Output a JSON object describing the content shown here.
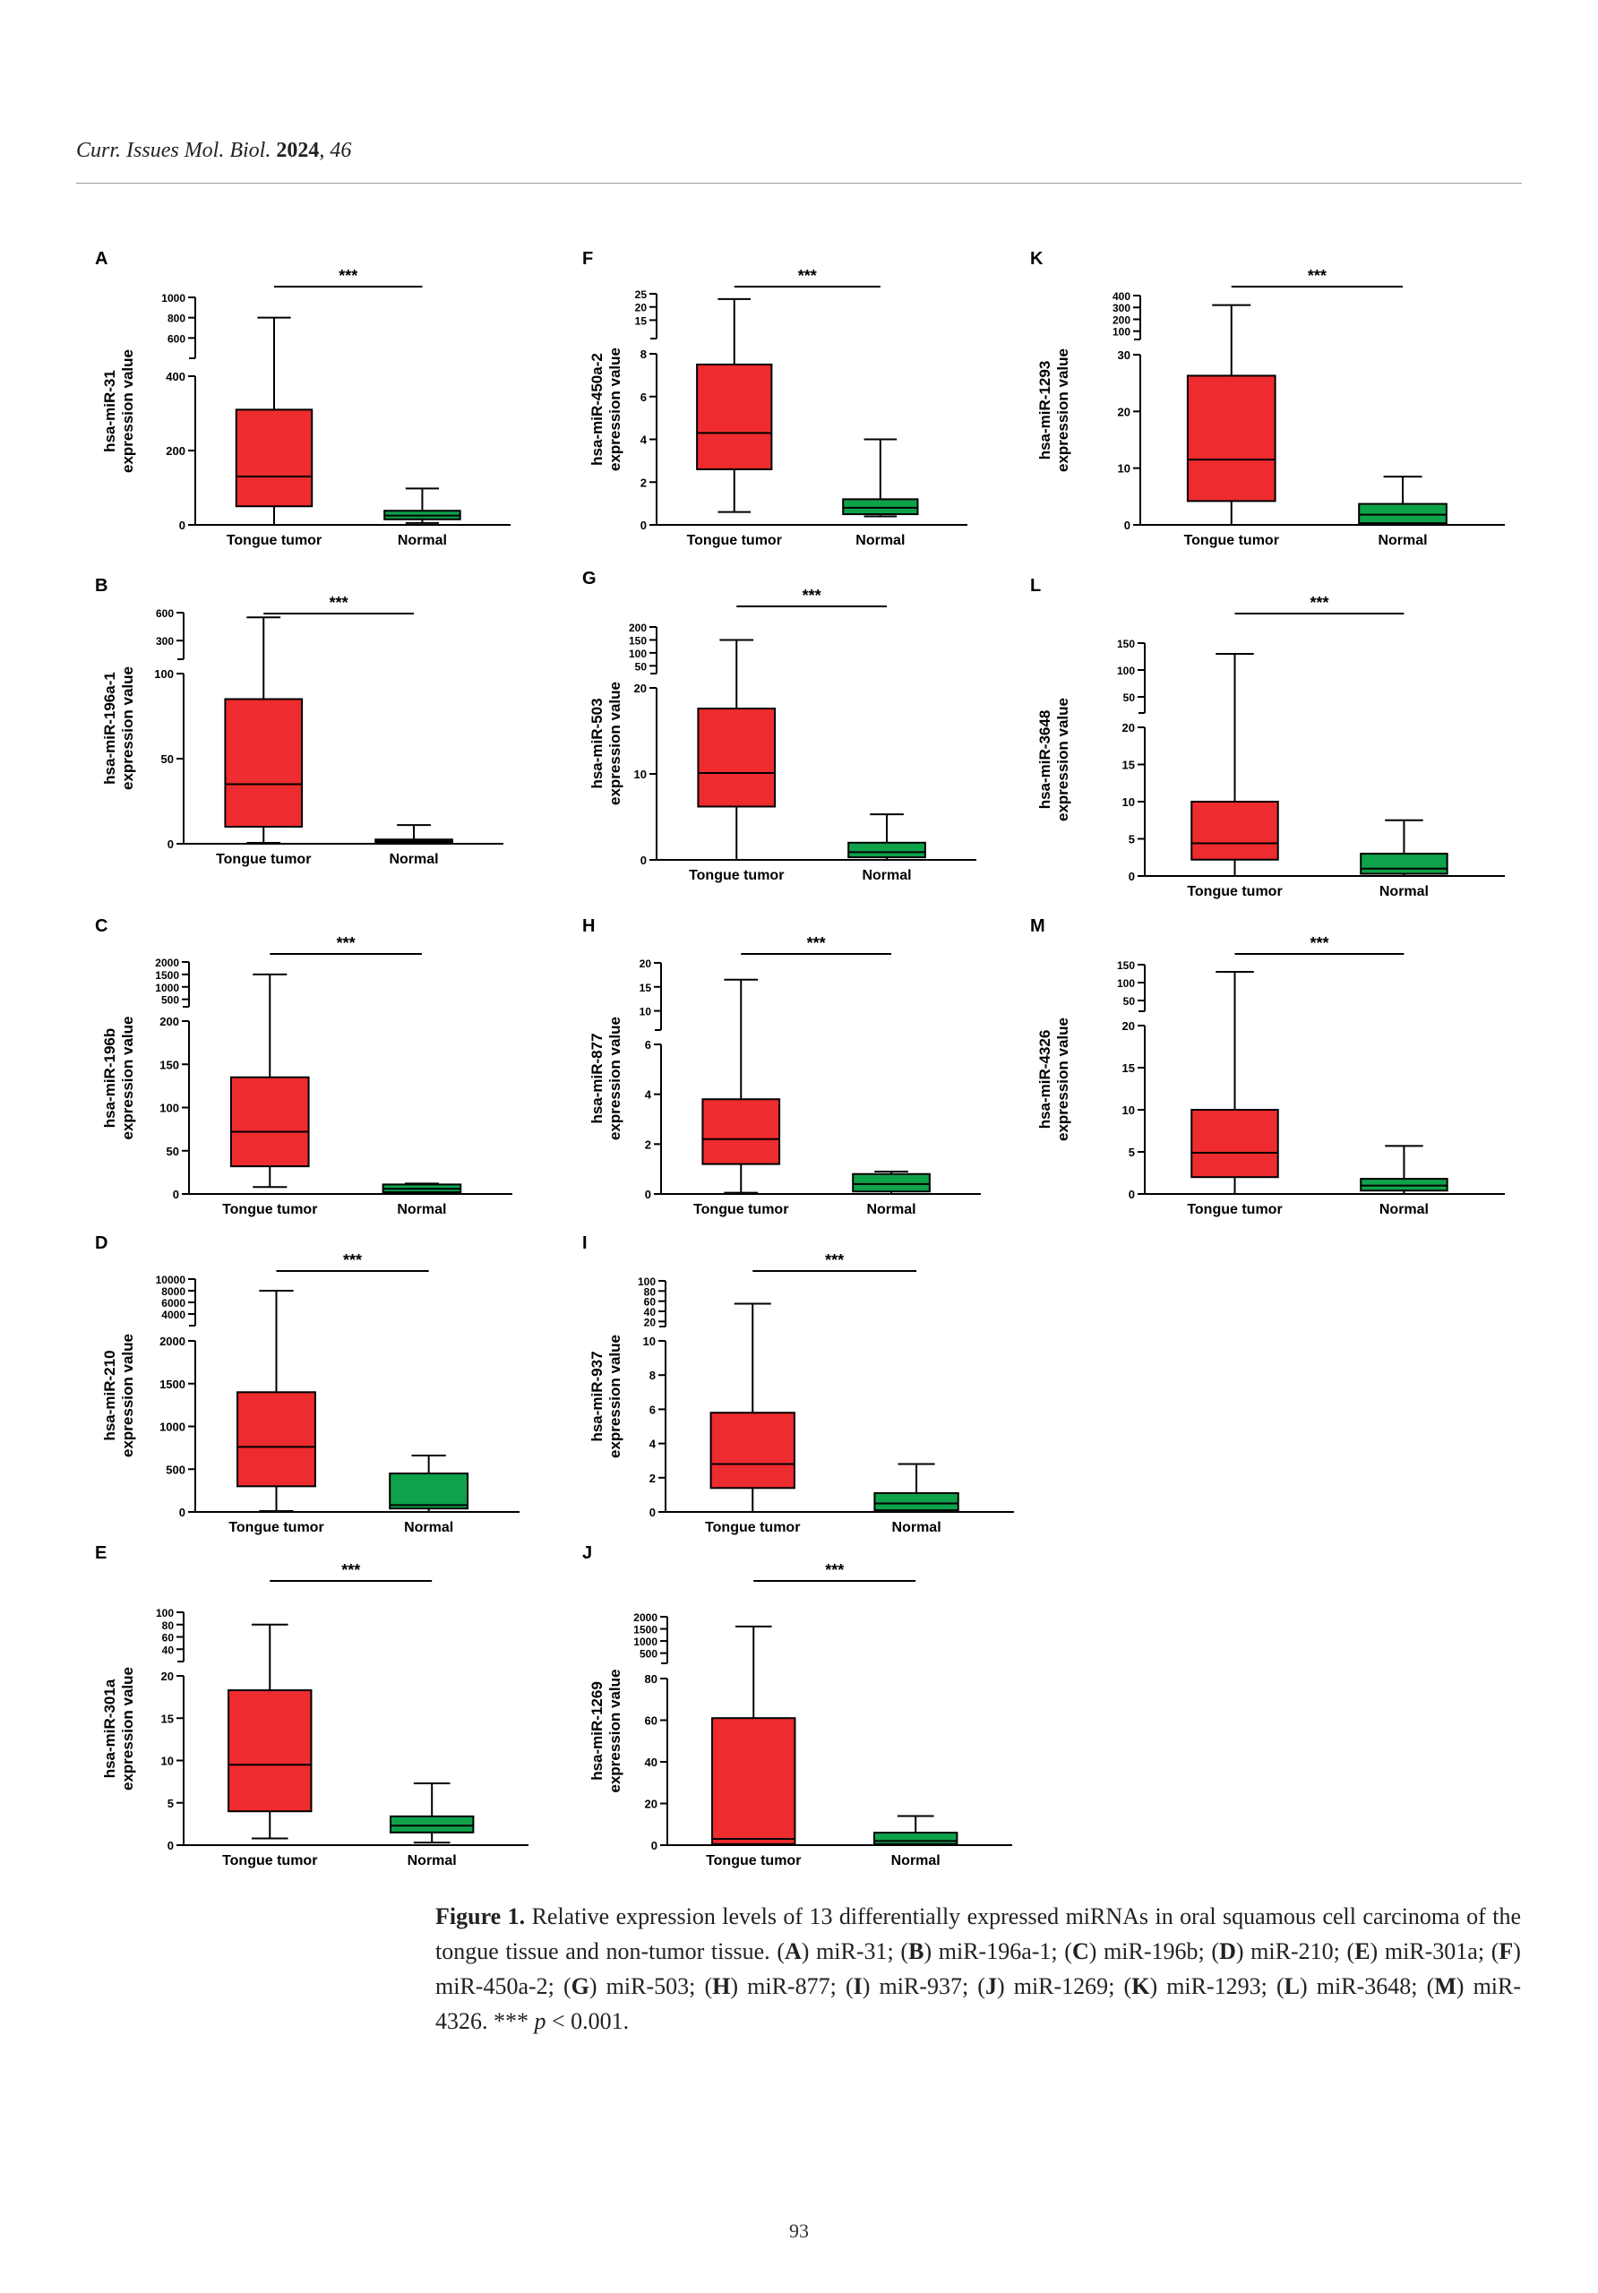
{
  "header": {
    "journal": "Curr. Issues Mol. Biol.",
    "year": "2024",
    "volume": "46"
  },
  "colors": {
    "tumor": "#ee2b2e",
    "normal": "#0ea24a",
    "ink": "#000000"
  },
  "chart_data": [
    {
      "type": "box",
      "panel": "A",
      "ylabel": [
        "hsa-miR-31",
        "expression value"
      ],
      "categories": [
        "Tongue tumor",
        "Normal"
      ],
      "significance": "***",
      "axis": {
        "lower": {
          "min": 0,
          "max": 400,
          "ticks": [
            0,
            200,
            400
          ]
        },
        "upper": {
          "min": 400,
          "max": 1000,
          "ticks": [
            400,
            600,
            800,
            1000
          ]
        }
      },
      "series": [
        {
          "min": 0,
          "q1": 50,
          "median": 130,
          "q3": 310,
          "max": 800
        },
        {
          "min": 5,
          "q1": 15,
          "median": 25,
          "q3": 38,
          "max": 98
        }
      ]
    },
    {
      "type": "box",
      "panel": "B",
      "ylabel": [
        "hsa-miR-196a-1",
        "expression value"
      ],
      "categories": [
        "Tongue tumor",
        "Normal"
      ],
      "significance": "***",
      "axis": {
        "lower": {
          "min": 0,
          "max": 100,
          "ticks": [
            0,
            50,
            100
          ]
        },
        "upper": {
          "min": 100,
          "max": 600,
          "ticks": [
            300,
            600
          ]
        }
      },
      "series": [
        {
          "min": 0.5,
          "q1": 10,
          "median": 35,
          "q3": 85,
          "max": 550
        },
        {
          "min": 0,
          "q1": 0.5,
          "median": 1.5,
          "q3": 2.5,
          "max": 11
        }
      ]
    },
    {
      "type": "box",
      "panel": "C",
      "ylabel": [
        "hsa-miR-196b",
        "expression value"
      ],
      "categories": [
        "Tongue tumor",
        "Normal"
      ],
      "significance": "***",
      "axis": {
        "lower": {
          "min": 0,
          "max": 200,
          "ticks": [
            0,
            50,
            100,
            150,
            200
          ]
        },
        "upper": {
          "min": 200,
          "max": 2000,
          "ticks": [
            500,
            1000,
            1500,
            2000
          ]
        }
      },
      "series": [
        {
          "min": 8,
          "q1": 32,
          "median": 72,
          "q3": 135,
          "max": 1500
        },
        {
          "min": 0,
          "q1": 2,
          "median": 6,
          "q3": 11,
          "max": 12
        }
      ]
    },
    {
      "type": "box",
      "panel": "D",
      "ylabel": [
        "hsa-miR-210",
        "expression value"
      ],
      "categories": [
        "Tongue tumor",
        "Normal"
      ],
      "significance": "***",
      "axis": {
        "lower": {
          "min": 0,
          "max": 2000,
          "ticks": [
            0,
            500,
            1000,
            1500,
            2000
          ]
        },
        "upper": {
          "min": 2000,
          "max": 10000,
          "ticks": [
            2000,
            4000,
            6000,
            8000,
            10000
          ]
        }
      },
      "series": [
        {
          "min": 10,
          "q1": 300,
          "median": 760,
          "q3": 1400,
          "max": 8000
        },
        {
          "min": 0,
          "q1": 40,
          "median": 80,
          "q3": 450,
          "max": 660
        }
      ]
    },
    {
      "type": "box",
      "panel": "E",
      "ylabel": [
        "hsa-miR-301a",
        "expression value"
      ],
      "categories": [
        "Tongue tumor",
        "Normal"
      ],
      "significance": "***",
      "axis": {
        "lower": {
          "min": 0,
          "max": 20,
          "ticks": [
            0,
            5,
            10,
            15,
            20
          ]
        },
        "upper": {
          "min": 20,
          "max": 100,
          "ticks": [
            20,
            40,
            60,
            80,
            100
          ]
        }
      },
      "series": [
        {
          "min": 0.8,
          "q1": 4,
          "median": 9.5,
          "q3": 18.3,
          "max": 80
        },
        {
          "min": 0.3,
          "q1": 1.5,
          "median": 2.3,
          "q3": 3.4,
          "max": 7.3
        }
      ]
    },
    {
      "type": "box",
      "panel": "F",
      "ylabel": [
        "hsa-miR-450a-2",
        "expression value"
      ],
      "categories": [
        "Tongue tumor",
        "Normal"
      ],
      "significance": "***",
      "axis": {
        "lower": {
          "min": 0,
          "max": 8,
          "ticks": [
            0,
            2,
            4,
            6,
            8
          ]
        },
        "upper": {
          "min": 8,
          "max": 25,
          "ticks": [
            15,
            20,
            25
          ]
        }
      },
      "series": [
        {
          "min": 0.6,
          "q1": 2.6,
          "median": 4.3,
          "q3": 7.5,
          "max": 23
        },
        {
          "min": 0.4,
          "q1": 0.5,
          "median": 0.8,
          "q3": 1.2,
          "max": 4
        }
      ]
    },
    {
      "type": "box",
      "panel": "G",
      "ylabel": [
        "hsa-miR-503",
        "expression value"
      ],
      "categories": [
        "Tongue tumor",
        "Normal"
      ],
      "significance": "***",
      "axis": {
        "lower": {
          "min": 0,
          "max": 20,
          "ticks": [
            0,
            10,
            20
          ]
        },
        "upper": {
          "min": 20,
          "max": 200,
          "ticks": [
            50,
            100,
            150,
            200
          ]
        }
      },
      "series": [
        {
          "min": 0,
          "q1": 6.2,
          "median": 10.1,
          "q3": 17.6,
          "max": 150
        },
        {
          "min": 0,
          "q1": 0.3,
          "median": 0.9,
          "q3": 2,
          "max": 5.3
        }
      ]
    },
    {
      "type": "box",
      "panel": "H",
      "ylabel": [
        "hsa-miR-877",
        "expression value"
      ],
      "categories": [
        "Tongue tumor",
        "Normal"
      ],
      "significance": "***",
      "axis": {
        "lower": {
          "min": 0,
          "max": 6,
          "ticks": [
            0,
            2,
            4,
            6
          ]
        },
        "upper": {
          "min": 6,
          "max": 20,
          "ticks": [
            10,
            15,
            20
          ]
        }
      },
      "series": [
        {
          "min": 0.05,
          "q1": 1.2,
          "median": 2.2,
          "q3": 3.8,
          "max": 16.5
        },
        {
          "min": 0,
          "q1": 0.1,
          "median": 0.4,
          "q3": 0.8,
          "max": 0.9
        }
      ]
    },
    {
      "type": "box",
      "panel": "I",
      "ylabel": [
        "hsa-miR-937",
        "expression value"
      ],
      "categories": [
        "Tongue tumor",
        "Normal"
      ],
      "significance": "***",
      "axis": {
        "lower": {
          "min": 0,
          "max": 10,
          "ticks": [
            0,
            2,
            4,
            6,
            8,
            10
          ]
        },
        "upper": {
          "min": 10,
          "max": 100,
          "ticks": [
            20,
            40,
            60,
            80,
            100
          ]
        }
      },
      "series": [
        {
          "min": 0,
          "q1": 1.4,
          "median": 2.8,
          "q3": 5.8,
          "max": 55
        },
        {
          "min": 0,
          "q1": 0.1,
          "median": 0.5,
          "q3": 1.1,
          "max": 2.8
        }
      ]
    },
    {
      "type": "box",
      "panel": "J",
      "ylabel": [
        "hsa-miR-1269",
        "expression value"
      ],
      "categories": [
        "Tongue tumor",
        "Normal"
      ],
      "significance": "***",
      "axis": {
        "lower": {
          "min": 0,
          "max": 80,
          "ticks": [
            0,
            20,
            40,
            60,
            80
          ]
        },
        "upper": {
          "min": 80,
          "max": 2000,
          "ticks": [
            500,
            1000,
            1500,
            2000
          ]
        }
      },
      "series": [
        {
          "min": 0,
          "q1": 0.5,
          "median": 3,
          "q3": 61,
          "max": 1600
        },
        {
          "min": 0,
          "q1": 0.5,
          "median": 2,
          "q3": 6,
          "max": 14
        }
      ]
    },
    {
      "type": "box",
      "panel": "K",
      "ylabel": [
        "hsa-miR-1293",
        "expression value"
      ],
      "categories": [
        "Tongue tumor",
        "Normal"
      ],
      "significance": "***",
      "axis": {
        "lower": {
          "min": 0,
          "max": 30,
          "ticks": [
            0,
            10,
            20,
            30
          ]
        },
        "upper": {
          "min": 30,
          "max": 400,
          "ticks": [
            100,
            200,
            300,
            400
          ]
        }
      },
      "series": [
        {
          "min": 0,
          "q1": 4.2,
          "median": 11.5,
          "q3": 26.3,
          "max": 320
        },
        {
          "min": 0,
          "q1": 0.3,
          "median": 1.8,
          "q3": 3.7,
          "max": 8.5
        }
      ]
    },
    {
      "type": "box",
      "panel": "L",
      "ylabel": [
        "hsa-miR-3648",
        "expression value"
      ],
      "categories": [
        "Tongue tumor",
        "Normal"
      ],
      "significance": "***",
      "axis": {
        "lower": {
          "min": 0,
          "max": 20,
          "ticks": [
            0,
            5,
            10,
            15,
            20
          ]
        },
        "upper": {
          "min": 20,
          "max": 150,
          "ticks": [
            50,
            100,
            150
          ]
        }
      },
      "series": [
        {
          "min": 0,
          "q1": 2.2,
          "median": 4.4,
          "q3": 10,
          "max": 130
        },
        {
          "min": 0,
          "q1": 0.3,
          "median": 1,
          "q3": 3,
          "max": 7.5
        }
      ]
    },
    {
      "type": "box",
      "panel": "M",
      "ylabel": [
        "hsa-miR-4326",
        "expression value"
      ],
      "categories": [
        "Tongue tumor",
        "Normal"
      ],
      "significance": "***",
      "axis": {
        "lower": {
          "min": 0,
          "max": 20,
          "ticks": [
            0,
            5,
            10,
            15,
            20
          ]
        },
        "upper": {
          "min": 20,
          "max": 150,
          "ticks": [
            50,
            100,
            150
          ]
        }
      },
      "series": [
        {
          "min": 0,
          "q1": 2,
          "median": 4.9,
          "q3": 10,
          "max": 130
        },
        {
          "min": 0,
          "q1": 0.4,
          "median": 1,
          "q3": 1.8,
          "max": 5.7
        }
      ]
    }
  ],
  "caption": {
    "label": "Figure 1.",
    "intro": " Relative expression levels of 13 differentially expressed miRNAs in oral squamous cell carcinoma of the tongue tissue and non-tumor tissue. ",
    "items": [
      {
        "letter": "A",
        "text": "miR-31"
      },
      {
        "letter": "B",
        "text": "miR-196a-1"
      },
      {
        "letter": "C",
        "text": "miR-196b"
      },
      {
        "letter": "D",
        "text": "miR-210"
      },
      {
        "letter": "E",
        "text": "miR-301a"
      },
      {
        "letter": "F",
        "text": "miR-450a-2"
      },
      {
        "letter": "G",
        "text": "miR-503"
      },
      {
        "letter": "H",
        "text": "miR-877"
      },
      {
        "letter": "I",
        "text": "miR-937"
      },
      {
        "letter": "J",
        "text": "miR-1269"
      },
      {
        "letter": "K",
        "text": "miR-1293"
      },
      {
        "letter": "L",
        "text": "miR-3648"
      },
      {
        "letter": "M",
        "text": "miR-4326"
      }
    ],
    "note_stars": "***",
    "note_p": "p",
    "note_rest": " < 0.001."
  },
  "page_number": "93"
}
